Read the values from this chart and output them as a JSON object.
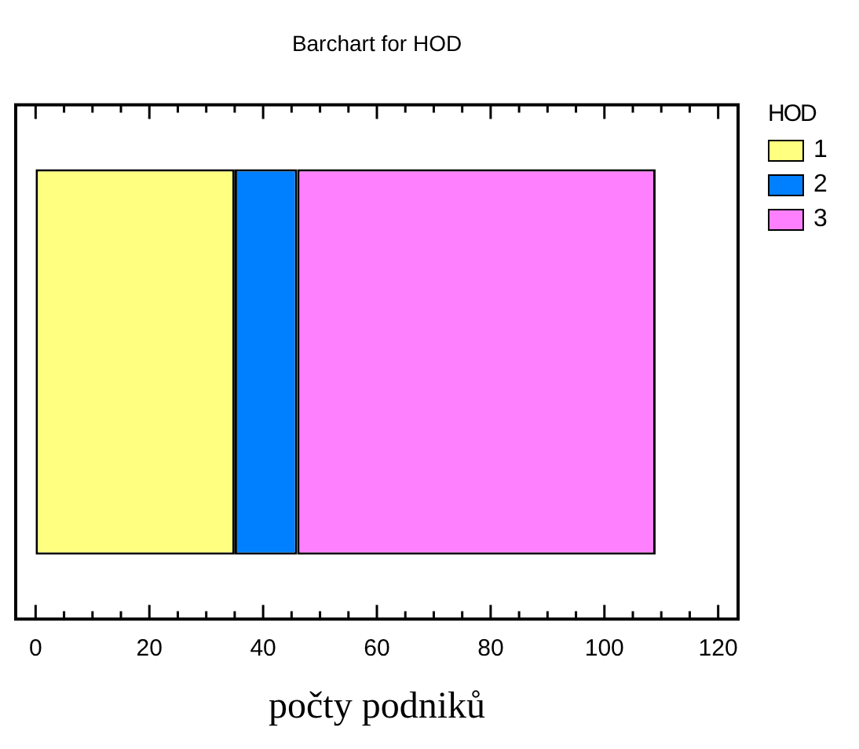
{
  "chart_data": {
    "type": "bar",
    "orientation": "horizontal",
    "stacked": true,
    "title": "Barchart for HOD",
    "xlabel": "počty podniků",
    "legend_title": "HOD",
    "legend": "top right",
    "categories": [
      null
    ],
    "series": [
      {
        "name": "1",
        "color": "#ffff80",
        "values": [
          35
        ]
      },
      {
        "name": "2",
        "color": "#0080ff",
        "values": [
          11
        ]
      },
      {
        "name": "3",
        "color": "#ff80ff",
        "values": [
          63
        ]
      }
    ],
    "xlim": [
      -3.5,
      123.5
    ],
    "xticks": [
      0,
      20,
      40,
      60,
      80,
      100,
      120
    ],
    "grid": false
  }
}
